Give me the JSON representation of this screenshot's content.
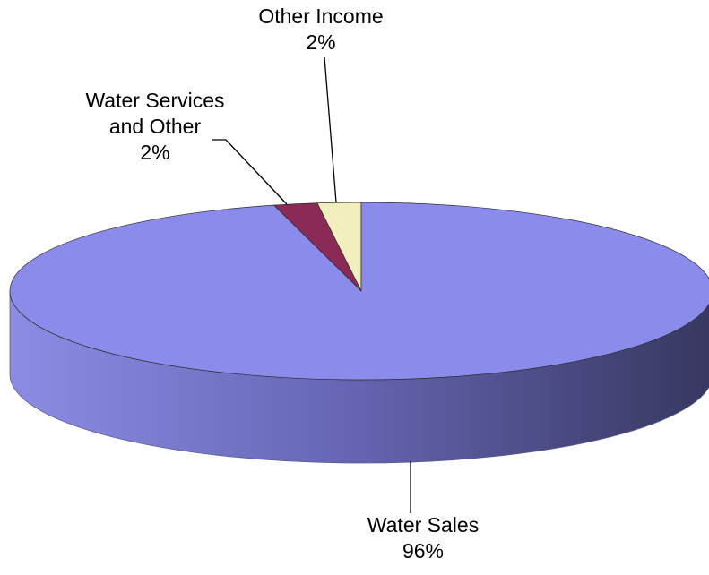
{
  "chart_data": {
    "type": "pie",
    "style": "3d",
    "slices": [
      {
        "name": "Water Sales",
        "label_lines": [
          "Water Sales",
          "96%"
        ],
        "value": 96,
        "color": "#8b8beb",
        "side_dark": "#373760"
      },
      {
        "name": "Water Services and Other",
        "label_lines": [
          "Water Services",
          "and Other",
          "2%"
        ],
        "value": 2,
        "color": "#8b2a56",
        "side_dark": "#4a1630"
      },
      {
        "name": "Other Income",
        "label_lines": [
          "Other Income",
          "2%"
        ],
        "value": 2,
        "color": "#f1efbe",
        "side_dark": "#8a8868"
      }
    ]
  }
}
